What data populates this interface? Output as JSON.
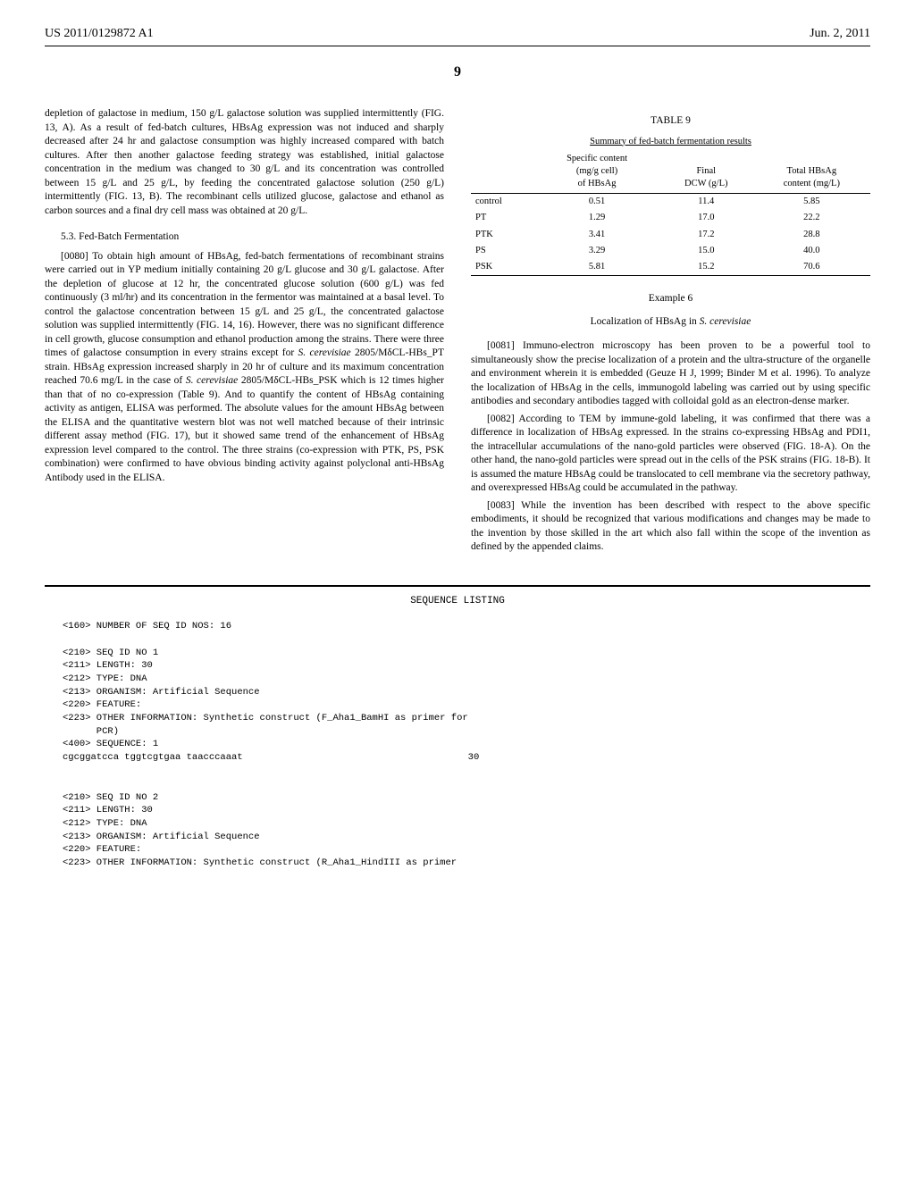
{
  "header": {
    "pub_id": "US 2011/0129872 A1",
    "pub_date": "Jun. 2, 2011"
  },
  "page_number": "9",
  "left_column": {
    "continuation_text": "depletion of galactose in medium, 150 g/L galactose solution was supplied intermittently (FIG. 13, A). As a result of fed-batch cultures, HBsAg expression was not induced and sharply decreased after 24 hr and galactose consumption was highly increased compared with batch cultures. After then another galactose feeding strategy was established, initial galactose concentration in the medium was changed to 30 g/L and its concentration was controlled between 15 g/L and 25 g/L, by feeding the concentrated galactose solution (250 g/L) intermittently (FIG. 13, B). The recombinant cells utilized glucose, galactose and ethanol as carbon sources and a final dry cell mass was obtained at 20 g/L.",
    "section_5_3": "5.3. Fed-Batch Fermentation",
    "para_0080_num": "[0080]",
    "para_0080_text": " To obtain high amount of HBsAg, fed-batch fermentations of recombinant strains were carried out in YP medium initially containing 20 g/L glucose and 30 g/L galactose. After the depletion of glucose at 12 hr, the concentrated glucose solution (600 g/L) was fed continuously (3 ml/hr) and its concentration in the fermentor was maintained at a basal level. To control the galactose concentration between 15 g/L and 25 g/L, the concentrated galactose solution was supplied intermittently (FIG. 14, 16). However, there was no significant difference in cell growth, glucose consumption and ethanol production among the strains. There were three times of galactose consumption in every strains except for ",
    "para_0080_italic_1": "S. cerevisiae",
    "para_0080_text_2": " 2805/MδCL-HBs_PT strain. HBsAg expression increased sharply in 20 hr of culture and its maximum concentration reached 70.6 mg/L in the case of ",
    "para_0080_italic_2": "S. cerevisiae",
    "para_0080_text_3": " 2805/MδCL-HBs_PSK which is 12 times higher than that of no co-expression (Table 9). And to quantify the content of HBsAg containing activity as antigen, ELISA was performed. The absolute values for the amount HBsAg between the ELISA and the quantitative western blot was not well matched because of their intrinsic different assay method (FIG. 17), but it showed same trend of the enhancement of HBsAg expression level compared to the control. The three strains (co-expression with PTK, PS, PSK combination) were confirmed to have obvious binding activity against polyclonal anti-HBsAg Antibody used in the ELISA."
  },
  "right_column": {
    "table_9": {
      "label": "TABLE 9",
      "caption": "Summary of fed-batch fermentation results",
      "headers": [
        "",
        "Specific content\n(mg/g cell)\nof HBsAg",
        "Final\nDCW (g/L)",
        "Total HBsAg\ncontent (mg/L)"
      ],
      "rows": [
        [
          "control",
          "0.51",
          "11.4",
          "5.85"
        ],
        [
          "PT",
          "1.29",
          "17.0",
          "22.2"
        ],
        [
          "PTK",
          "3.41",
          "17.2",
          "28.8"
        ],
        [
          "PS",
          "3.29",
          "15.0",
          "40.0"
        ],
        [
          "PSK",
          "5.81",
          "15.2",
          "70.6"
        ]
      ]
    },
    "example_6_label": "Example 6",
    "example_6_title_prefix": "Localization of HBsAg in ",
    "example_6_title_italic": "S. cerevisiae",
    "para_0081_num": "[0081]",
    "para_0081_text": " Immuno-electron microscopy has been proven to be a powerful tool to simultaneously show the precise localization of a protein and the ultra-structure of the organelle and environment wherein it is embedded (Geuze H J, 1999; Binder M et al. 1996). To analyze the localization of HBsAg in the cells, immunogold labeling was carried out by using specific antibodies and secondary antibodies tagged with colloidal gold as an electron-dense marker.",
    "para_0082_num": "[0082]",
    "para_0082_text": " According to TEM by immune-gold labeling, it was confirmed that there was a difference in localization of HBsAg expressed. In the strains co-expressing HBsAg and PDI1, the intracellular accumulations of the nano-gold particles were observed (FIG. 18-A). On the other hand, the nano-gold particles were spread out in the cells of the PSK strains (FIG. 18-B). It is assumed the mature HBsAg could be translocated to cell membrane via the secretory pathway, and overexpressed HBsAg could be accumulated in the pathway.",
    "para_0083_num": "[0083]",
    "para_0083_text": " While the invention has been described with respect to the above specific embodiments, it should be recognized that various modifications and changes may be made to the invention by those skilled in the art which also fall within the scope of the invention as defined by the appended claims."
  },
  "sequence_listing": {
    "title": "SEQUENCE LISTING",
    "num_seqs": "<160> NUMBER OF SEQ ID NOS: 16",
    "seq1": {
      "l1": "<210> SEQ ID NO 1",
      "l2": "<211> LENGTH: 30",
      "l3": "<212> TYPE: DNA",
      "l4": "<213> ORGANISM: Artificial Sequence",
      "l5": "<220> FEATURE:",
      "l6": "<223> OTHER INFORMATION: Synthetic construct (F_Aha1_BamHI as primer for",
      "l7": "      PCR)",
      "l8": "",
      "l9": "<400> SEQUENCE: 1",
      "l10": "",
      "seq_line": "cgcggatcca tggtcgtgaa taacccaaat",
      "seq_num": "                                        30"
    },
    "seq2": {
      "l1": "<210> SEQ ID NO 2",
      "l2": "<211> LENGTH: 30",
      "l3": "<212> TYPE: DNA",
      "l4": "<213> ORGANISM: Artificial Sequence",
      "l5": "<220> FEATURE:",
      "l6": "<223> OTHER INFORMATION: Synthetic construct (R_Aha1_HindIII as primer"
    }
  },
  "colors": {
    "text": "#000000",
    "bg": "#ffffff",
    "border": "#000000"
  }
}
